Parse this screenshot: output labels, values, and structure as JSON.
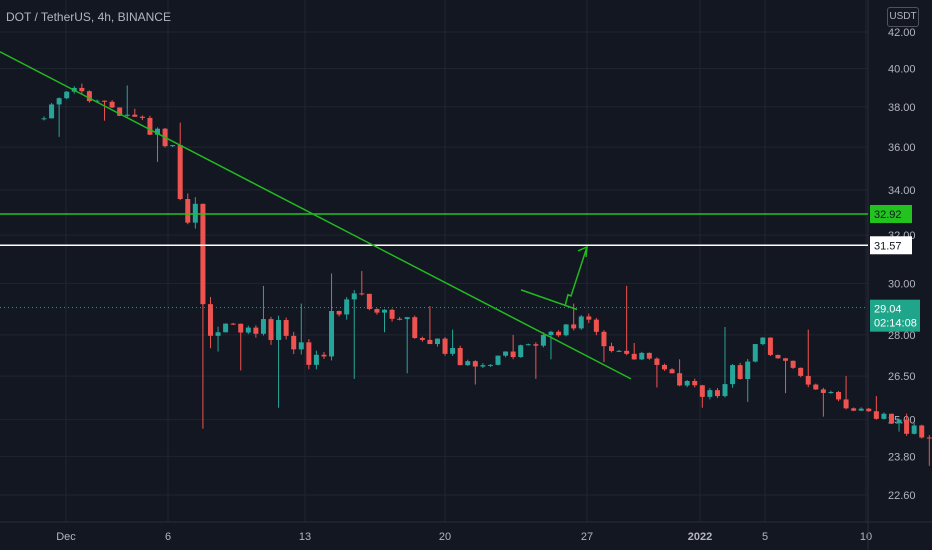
{
  "header": {
    "symbol_line": "DOT / TetherUS, 4h, BINANCE"
  },
  "currency_button": "USDT",
  "colors": {
    "background": "#131722",
    "grid": "#1f2431",
    "up_candle": "#26a69a",
    "down_candle": "#ef5350",
    "trend_line": "#22b81f",
    "support_line": "#22c21f",
    "resistance_line": "#ffffff",
    "price_tag": "#1ea58a"
  },
  "chart_data": {
    "type": "candlestick",
    "symbol": "DOT / TetherUS",
    "interval": "4h",
    "exchange": "BINANCE",
    "y_axis": {
      "scale": "log",
      "tick_labels": [
        "42.00",
        "40.00",
        "38.00",
        "36.00",
        "34.00",
        "32.00",
        "30.00",
        "28.00",
        "26.50",
        "25.00",
        "23.80",
        "22.60"
      ]
    },
    "x_axis": {
      "tick_labels": [
        "Dec",
        "6",
        "13",
        "20",
        "27",
        "2022",
        "5",
        "10"
      ]
    },
    "horizontal_levels": [
      {
        "label": "32.92",
        "value": 32.92,
        "color": "#22c21f"
      },
      {
        "label": "31.57",
        "value": 31.57,
        "color": "#ffffff"
      }
    ],
    "current_price": {
      "label": "29.04",
      "value": 29.04,
      "countdown": "02:14:08"
    },
    "candles": [
      {
        "date": "Nov 27",
        "open": 36.0,
        "high": 36.8,
        "low": 33.6,
        "close": 34.6
      },
      {
        "date": "Nov 28",
        "open": 34.6,
        "high": 37.4,
        "low": 33.0,
        "close": 36.8
      },
      {
        "date": "Nov 29",
        "open": 36.8,
        "high": 37.6,
        "low": 35.6,
        "close": 36.2
      },
      {
        "date": "Nov 30",
        "open": 36.2,
        "high": 38.0,
        "low": 35.6,
        "close": 37.4
      },
      {
        "date": "Dec 1",
        "open": 37.4,
        "high": 39.2,
        "low": 36.5,
        "close": 38.8
      },
      {
        "date": "Dec 2",
        "open": 38.8,
        "high": 39.1,
        "low": 37.3,
        "close": 37.6
      },
      {
        "date": "Dec 3",
        "open": 37.6,
        "high": 37.9,
        "low": 35.3,
        "close": 36.1
      },
      {
        "date": "Dec 4",
        "open": 36.1,
        "high": 37.2,
        "low": 24.7,
        "close": 28.1
      },
      {
        "date": "Dec 5",
        "open": 28.1,
        "high": 29.9,
        "low": 26.7,
        "close": 28.6
      },
      {
        "date": "Dec 6",
        "open": 28.6,
        "high": 29.2,
        "low": 25.4,
        "close": 26.9
      },
      {
        "date": "Dec 7",
        "open": 26.9,
        "high": 30.4,
        "low": 26.4,
        "close": 29.6
      },
      {
        "date": "Dec 8",
        "open": 29.6,
        "high": 30.5,
        "low": 28.1,
        "close": 28.6
      },
      {
        "date": "Dec 9",
        "open": 28.6,
        "high": 29.1,
        "low": 26.6,
        "close": 27.3
      },
      {
        "date": "Dec 10",
        "open": 27.3,
        "high": 28.2,
        "low": 26.2,
        "close": 26.9
      },
      {
        "date": "Dec 11",
        "open": 26.9,
        "high": 28.0,
        "low": 26.4,
        "close": 27.6
      },
      {
        "date": "Dec 12",
        "open": 27.6,
        "high": 29.2,
        "low": 27.1,
        "close": 28.7
      },
      {
        "date": "Dec 13",
        "open": 28.7,
        "high": 29.9,
        "low": 27.0,
        "close": 27.3
      },
      {
        "date": "Dec 14",
        "open": 27.3,
        "high": 27.7,
        "low": 26.1,
        "close": 26.6
      },
      {
        "date": "Dec 15",
        "open": 26.6,
        "high": 27.1,
        "low": 25.4,
        "close": 25.8
      },
      {
        "date": "Dec 16",
        "open": 25.8,
        "high": 28.3,
        "low": 25.6,
        "close": 27.9
      },
      {
        "date": "Dec 17",
        "open": 27.9,
        "high": 28.2,
        "low": 25.9,
        "close": 26.2
      },
      {
        "date": "Dec 18",
        "open": 26.2,
        "high": 26.5,
        "low": 25.1,
        "close": 25.3
      },
      {
        "date": "Dec 19",
        "open": 25.3,
        "high": 25.8,
        "low": 24.6,
        "close": 25.0
      },
      {
        "date": "Dec 20",
        "open": 25.0,
        "high": 25.2,
        "low": 23.5,
        "close": 23.9
      },
      {
        "date": "Dec 21",
        "open": 23.9,
        "high": 25.7,
        "low": 23.7,
        "close": 25.5
      },
      {
        "date": "Dec 22",
        "open": 25.5,
        "high": 28.4,
        "low": 25.3,
        "close": 28.0
      },
      {
        "date": "Dec 23",
        "open": 28.0,
        "high": 29.7,
        "low": 27.4,
        "close": 29.3
      },
      {
        "date": "Dec 24",
        "open": 29.3,
        "high": 29.5,
        "low": 28.0,
        "close": 28.3
      },
      {
        "date": "Dec 25",
        "open": 28.3,
        "high": 29.2,
        "low": 28.0,
        "close": 29.04
      }
    ]
  }
}
